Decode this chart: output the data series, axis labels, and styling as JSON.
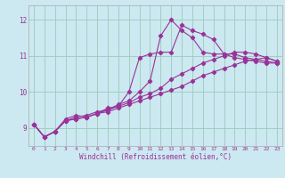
{
  "title": "",
  "xlabel": "Windchill (Refroidissement éolien,°C)",
  "ylabel": "",
  "bg_color": "#cce8f0",
  "line_color": "#993399",
  "grid_color": "#99ccbb",
  "xlim": [
    -0.5,
    23.5
  ],
  "ylim": [
    8.5,
    12.4
  ],
  "yticks": [
    9,
    10,
    11,
    12
  ],
  "xticks": [
    0,
    1,
    2,
    3,
    4,
    5,
    6,
    7,
    8,
    9,
    10,
    11,
    12,
    13,
    14,
    15,
    16,
    17,
    18,
    19,
    20,
    21,
    22,
    23
  ],
  "series": [
    [
      9.1,
      8.75,
      8.9,
      9.25,
      9.35,
      9.3,
      9.4,
      9.55,
      9.6,
      10.0,
      10.95,
      11.05,
      11.1,
      11.1,
      11.85,
      11.7,
      11.6,
      11.45,
      11.05,
      11.05,
      10.95,
      10.9,
      10.85,
      10.8
    ],
    [
      9.1,
      8.75,
      8.9,
      9.2,
      9.3,
      9.35,
      9.45,
      9.5,
      9.65,
      9.75,
      10.0,
      10.3,
      11.55,
      12.0,
      11.7,
      11.5,
      11.1,
      11.05,
      11.05,
      10.95,
      10.9,
      10.85,
      10.8,
      10.8
    ],
    [
      9.1,
      8.75,
      8.9,
      9.2,
      9.25,
      9.3,
      9.4,
      9.5,
      9.6,
      9.7,
      9.85,
      9.95,
      10.1,
      10.35,
      10.5,
      10.65,
      10.8,
      10.9,
      11.0,
      11.1,
      11.1,
      11.05,
      10.95,
      10.85
    ],
    [
      9.1,
      8.75,
      8.9,
      9.2,
      9.25,
      9.3,
      9.4,
      9.45,
      9.55,
      9.65,
      9.75,
      9.85,
      9.95,
      10.05,
      10.15,
      10.3,
      10.45,
      10.55,
      10.65,
      10.75,
      10.85,
      10.9,
      10.95,
      10.85
    ]
  ],
  "series_x": [
    [
      0,
      1,
      2,
      3,
      4,
      5,
      6,
      7,
      8,
      9,
      10,
      11,
      12,
      13,
      14,
      15,
      16,
      17,
      18,
      19,
      20,
      21,
      22,
      23
    ],
    [
      0,
      1,
      2,
      3,
      4,
      5,
      6,
      7,
      8,
      9,
      10,
      11,
      12,
      13,
      14,
      15,
      16,
      17,
      18,
      19,
      20,
      21,
      22,
      23
    ],
    [
      0,
      1,
      2,
      3,
      4,
      5,
      6,
      7,
      8,
      9,
      10,
      11,
      12,
      13,
      14,
      15,
      16,
      17,
      18,
      19,
      20,
      21,
      22,
      23
    ],
    [
      0,
      1,
      2,
      3,
      4,
      5,
      6,
      7,
      8,
      9,
      10,
      11,
      12,
      13,
      14,
      15,
      16,
      17,
      18,
      19,
      20,
      21,
      22,
      23
    ]
  ]
}
